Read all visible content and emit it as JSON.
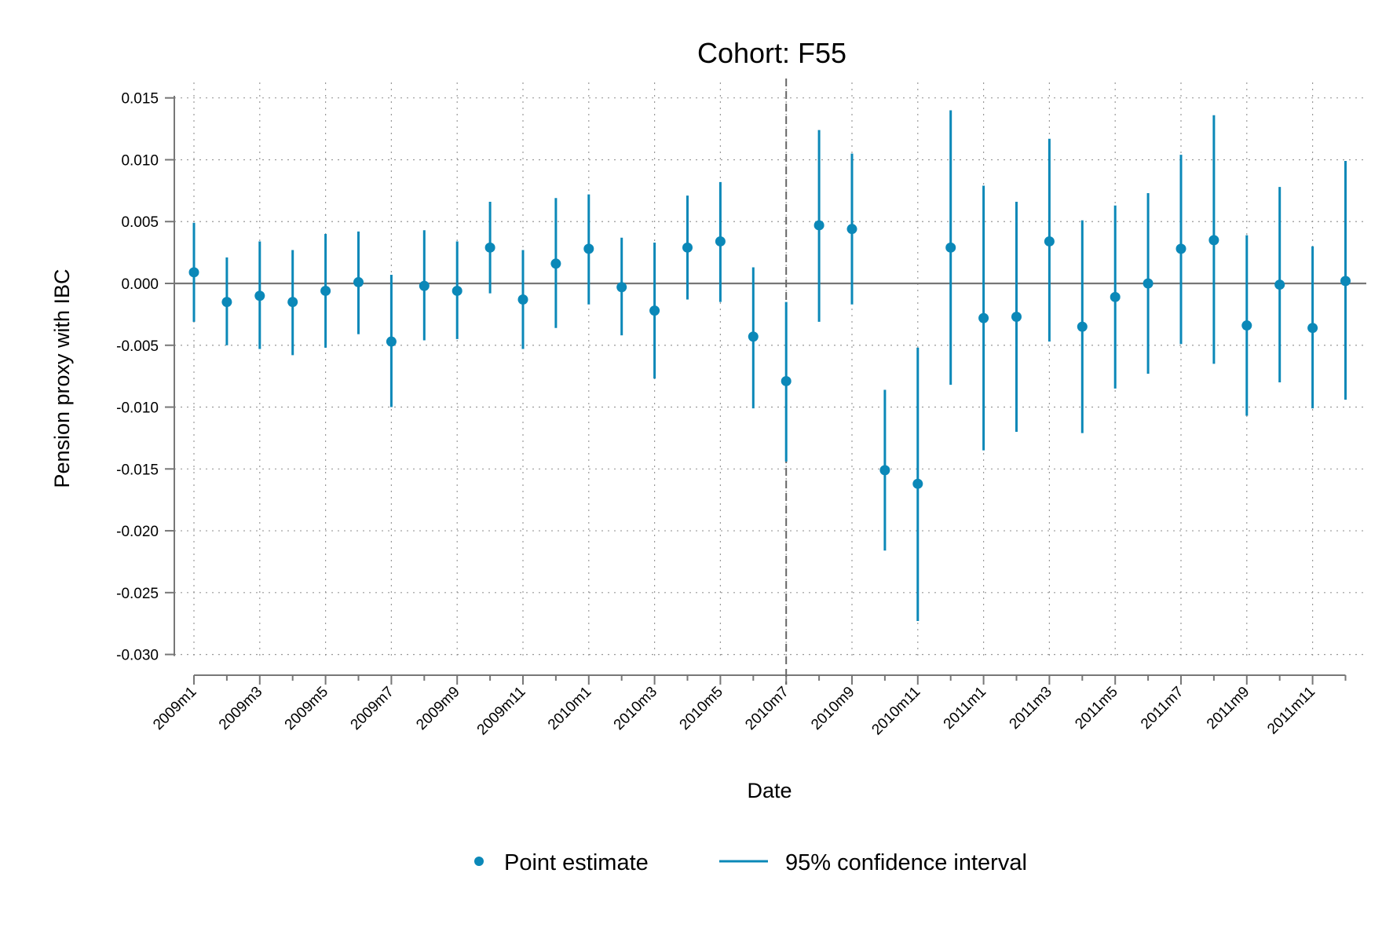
{
  "chart_data": {
    "type": "scatter",
    "title": "Cohort: F55",
    "xlabel": "Date",
    "ylabel": "Pension proxy with IBC",
    "x_categories": [
      "2009m1",
      "2009m2",
      "2009m3",
      "2009m4",
      "2009m5",
      "2009m6",
      "2009m7",
      "2009m8",
      "2009m9",
      "2009m10",
      "2009m11",
      "2009m12",
      "2010m1",
      "2010m2",
      "2010m3",
      "2010m4",
      "2010m5",
      "2010m6",
      "2010m7",
      "2010m8",
      "2010m9",
      "2010m10",
      "2010m11",
      "2010m12",
      "2011m1",
      "2011m2",
      "2011m3",
      "2011m4",
      "2011m5",
      "2011m6",
      "2011m7",
      "2011m8",
      "2011m9",
      "2011m10",
      "2011m11",
      "2011m12"
    ],
    "x_tick_labels": [
      "2009m1",
      "2009m3",
      "2009m5",
      "2009m7",
      "2009m9",
      "2009m11",
      "2010m1",
      "2010m3",
      "2010m5",
      "2010m7",
      "2010m9",
      "2010m11",
      "2011m1",
      "2011m3",
      "2011m5",
      "2011m7",
      "2011m9",
      "2011m11"
    ],
    "y_ticks": [
      0.015,
      0.01,
      0.005,
      0.0,
      -0.005,
      -0.01,
      -0.015,
      -0.02,
      -0.025,
      -0.03
    ],
    "y_tick_labels": [
      "0.015",
      "0.010",
      "0.005",
      "0.000",
      "-0.005",
      "-0.010",
      "-0.015",
      "-0.020",
      "-0.025",
      "-0.030"
    ],
    "ylim": [
      -0.0315,
      0.0155
    ],
    "grid": true,
    "reference_line_y": 0,
    "event_line_x": "2010m7",
    "series": [
      {
        "name": "Point estimate",
        "values": [
          0.0009,
          -0.0015,
          -0.001,
          -0.0015,
          -0.0006,
          0.0001,
          -0.0047,
          -0.0002,
          -0.0006,
          0.0029,
          -0.0013,
          0.0016,
          0.0028,
          -0.0003,
          -0.0022,
          0.0029,
          0.0034,
          -0.0043,
          -0.0079,
          0.0047,
          0.0044,
          -0.0151,
          -0.0162,
          0.0029,
          -0.0028,
          -0.0027,
          0.0034,
          -0.0035,
          -0.0011,
          0.0,
          0.0028,
          0.0035,
          -0.0034,
          -0.0001,
          -0.0036,
          0.0002
        ]
      },
      {
        "name": "95% confidence interval",
        "lower": [
          -0.0031,
          -0.005,
          -0.0053,
          -0.0058,
          -0.0052,
          -0.0041,
          -0.01,
          -0.0046,
          -0.0045,
          -0.0008,
          -0.0053,
          -0.0036,
          -0.0017,
          -0.0042,
          -0.0077,
          -0.0013,
          -0.0015,
          -0.0101,
          -0.0144,
          -0.0031,
          -0.0017,
          -0.0216,
          -0.0273,
          -0.0082,
          -0.0135,
          -0.012,
          -0.0047,
          -0.0121,
          -0.0085,
          -0.0073,
          -0.0049,
          -0.0065,
          -0.0107,
          -0.008,
          -0.0101,
          -0.0094
        ],
        "upper": [
          0.0049,
          0.0021,
          0.0034,
          0.0027,
          0.004,
          0.0042,
          0.0007,
          0.0043,
          0.0034,
          0.0066,
          0.0027,
          0.0069,
          0.0072,
          0.0037,
          0.0033,
          0.0071,
          0.0082,
          0.0013,
          -0.0015,
          0.0124,
          0.0105,
          -0.0086,
          -0.0052,
          0.014,
          0.0079,
          0.0066,
          0.0117,
          0.0051,
          0.0063,
          0.0073,
          0.0104,
          0.0136,
          0.0039,
          0.0078,
          0.003,
          0.0099
        ]
      }
    ],
    "colors": {
      "marker": "#0b88b8",
      "axis": "#777777",
      "grid": "#999999",
      "event_line": "#666666"
    },
    "legend": {
      "placement": "bottom",
      "entries": [
        {
          "label": "Point estimate",
          "symbol": "dot"
        },
        {
          "label": "95% confidence interval",
          "symbol": "line"
        }
      ]
    }
  }
}
